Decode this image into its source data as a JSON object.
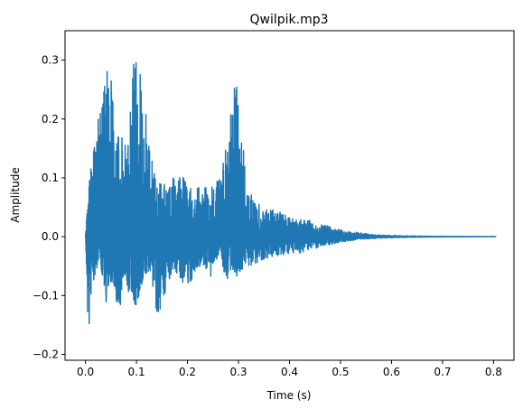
{
  "chart_data": {
    "type": "line",
    "title": "Qwilpik.mp3",
    "xlabel": "Time (s)",
    "ylabel": "Amplitude",
    "xlim": [
      -0.04,
      0.84
    ],
    "ylim": [
      -0.21,
      0.35
    ],
    "x_ticks": [
      0.0,
      0.1,
      0.2,
      0.3,
      0.4,
      0.5,
      0.6,
      0.7,
      0.8
    ],
    "x_tick_labels": [
      "0.0",
      "0.1",
      "0.2",
      "0.3",
      "0.4",
      "0.5",
      "0.6",
      "0.7",
      "0.8"
    ],
    "y_ticks": [
      -0.2,
      -0.1,
      0.0,
      0.1,
      0.2,
      0.3
    ],
    "y_tick_labels": [
      "−0.2",
      "−0.1",
      "0.0",
      "0.1",
      "0.2",
      "0.3"
    ],
    "grid": false,
    "series": [
      {
        "color": "#1f77b4",
        "envelope": {
          "x": [
            0.0,
            0.006,
            0.012,
            0.02,
            0.03,
            0.04,
            0.048,
            0.055,
            0.065,
            0.075,
            0.085,
            0.095,
            0.105,
            0.115,
            0.125,
            0.14,
            0.155,
            0.17,
            0.185,
            0.2,
            0.215,
            0.23,
            0.245,
            0.255,
            0.265,
            0.275,
            0.285,
            0.295,
            0.305,
            0.315,
            0.33,
            0.35,
            0.37,
            0.39,
            0.41,
            0.43,
            0.45,
            0.47,
            0.49,
            0.51,
            0.53,
            0.55,
            0.57,
            0.6,
            0.65,
            0.7,
            0.75,
            0.805
          ],
          "upper": [
            0.0,
            0.08,
            0.14,
            0.18,
            0.22,
            0.28,
            0.33,
            0.24,
            0.19,
            0.16,
            0.2,
            0.31,
            0.31,
            0.25,
            0.15,
            0.1,
            0.09,
            0.1,
            0.11,
            0.09,
            0.08,
            0.09,
            0.08,
            0.1,
            0.1,
            0.15,
            0.23,
            0.28,
            0.2,
            0.1,
            0.06,
            0.05,
            0.045,
            0.04,
            0.035,
            0.03,
            0.025,
            0.02,
            0.015,
            0.01,
            0.008,
            0.005,
            0.003,
            0.002,
            0.001,
            0.0005,
            0.0003,
            0.0001
          ],
          "lower": [
            0.0,
            -0.19,
            -0.09,
            -0.06,
            -0.05,
            -0.12,
            -0.1,
            -0.08,
            -0.15,
            -0.06,
            -0.1,
            -0.14,
            -0.11,
            -0.07,
            -0.06,
            -0.14,
            -0.1,
            -0.06,
            -0.07,
            -0.09,
            -0.06,
            -0.05,
            -0.07,
            -0.05,
            -0.02,
            -0.1,
            -0.07,
            -0.07,
            -0.06,
            -0.05,
            -0.05,
            -0.04,
            -0.035,
            -0.03,
            -0.03,
            -0.025,
            -0.02,
            -0.015,
            -0.012,
            -0.008,
            -0.006,
            -0.004,
            -0.003,
            -0.002,
            -0.001,
            -0.0005,
            -0.0003,
            -0.0001
          ]
        }
      }
    ]
  }
}
